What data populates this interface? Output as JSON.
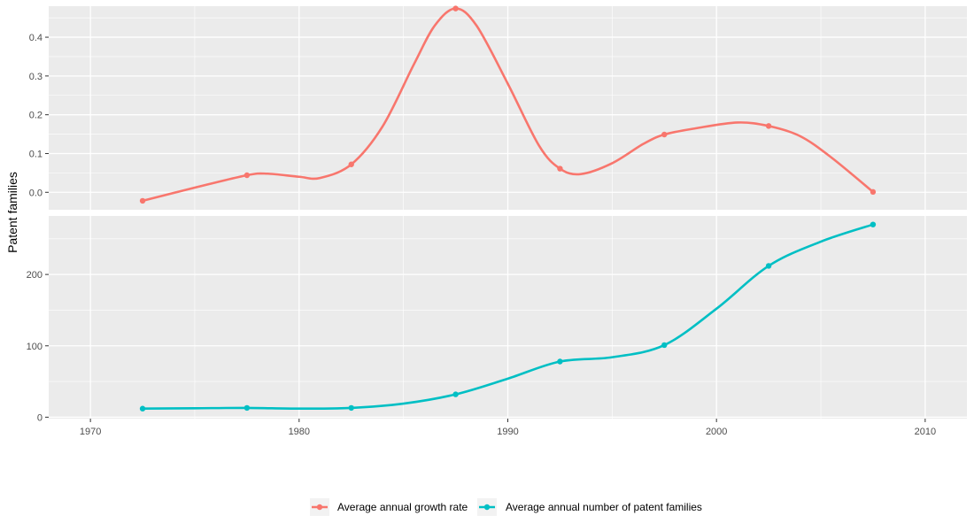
{
  "chart_data": {
    "type": "line",
    "ylabel": "Patent families",
    "x_range": [
      1968,
      2012
    ],
    "x_ticks": [
      1970,
      1980,
      1990,
      2000,
      2010
    ],
    "colors": {
      "panel_bg": "#ebebeb",
      "grid": "#ffffff"
    },
    "series": [
      {
        "name": "Average annual growth rate",
        "color": "#f8766d",
        "y_range": [
          -0.045,
          0.48
        ],
        "y_ticks": [
          0.0,
          0.1,
          0.2,
          0.3,
          0.4
        ],
        "y_tick_labels": [
          "0.0",
          "0.1",
          "0.2",
          "0.3",
          "0.4"
        ],
        "x": [
          1972.5,
          1977.5,
          1982.5,
          1987.5,
          1992.5,
          1997.5,
          2002.5,
          2007.5
        ],
        "values": [
          -0.022,
          0.044,
          0.072,
          0.474,
          0.061,
          0.149,
          0.171,
          0.001
        ],
        "curve": [
          [
            1972.5,
            -0.022
          ],
          [
            1975,
            0.012
          ],
          [
            1977.5,
            0.044
          ],
          [
            1978.5,
            0.048
          ],
          [
            1980,
            0.04
          ],
          [
            1981,
            0.037
          ],
          [
            1982.5,
            0.072
          ],
          [
            1984,
            0.17
          ],
          [
            1985.5,
            0.33
          ],
          [
            1986.5,
            0.43
          ],
          [
            1987.5,
            0.474
          ],
          [
            1988.5,
            0.43
          ],
          [
            1990,
            0.28
          ],
          [
            1991.5,
            0.12
          ],
          [
            1992.5,
            0.061
          ],
          [
            1993.5,
            0.047
          ],
          [
            1995,
            0.075
          ],
          [
            1996.5,
            0.125
          ],
          [
            1997.5,
            0.149
          ],
          [
            1999,
            0.165
          ],
          [
            2001,
            0.18
          ],
          [
            2002.5,
            0.171
          ],
          [
            2004,
            0.145
          ],
          [
            2005.5,
            0.09
          ],
          [
            2007.5,
            0.001
          ]
        ]
      },
      {
        "name": "Average annual number of patent families",
        "color": "#00bfc4",
        "y_range": [
          -2,
          282
        ],
        "y_ticks": [
          0,
          100,
          200
        ],
        "y_tick_labels": [
          "0",
          "100",
          "200"
        ],
        "x": [
          1972.5,
          1977.5,
          1982.5,
          1987.5,
          1992.5,
          1997.5,
          2002.5,
          2007.5
        ],
        "values": [
          12,
          13,
          13,
          32,
          78,
          101,
          212,
          270
        ],
        "curve": [
          [
            1972.5,
            12
          ],
          [
            1975,
            12.5
          ],
          [
            1977.5,
            13
          ],
          [
            1980,
            12
          ],
          [
            1982.5,
            13
          ],
          [
            1985,
            19
          ],
          [
            1987.5,
            32
          ],
          [
            1990,
            54
          ],
          [
            1992.5,
            78
          ],
          [
            1995,
            84
          ],
          [
            1997.5,
            101
          ],
          [
            2000,
            152
          ],
          [
            2002.5,
            212
          ],
          [
            2005,
            246
          ],
          [
            2007.5,
            270
          ]
        ]
      }
    ],
    "legend": {
      "position": "bottom"
    }
  }
}
